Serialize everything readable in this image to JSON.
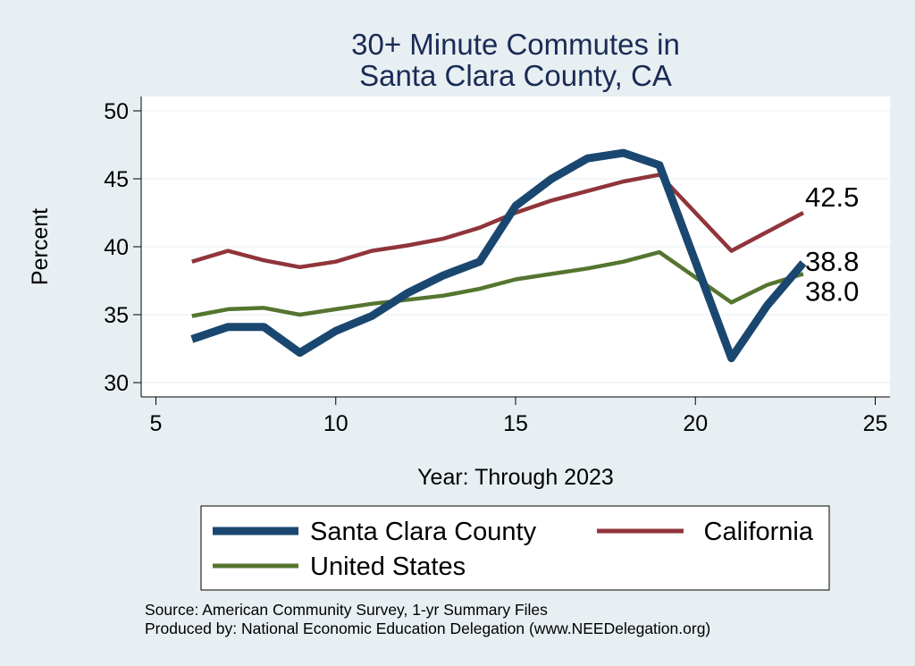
{
  "chart_data": {
    "type": "line",
    "title": [
      "30+ Minute Commutes in",
      "Santa Clara County, CA"
    ],
    "xlabel": "Year: Through 2023",
    "ylabel": "Percent",
    "xlim": [
      5,
      25
    ],
    "ylim": [
      30,
      50
    ],
    "xticks": [
      "5",
      "10",
      "15",
      "20",
      "25"
    ],
    "yticks": [
      "30",
      "35",
      "40",
      "45",
      "50"
    ],
    "x": [
      6,
      7,
      8,
      9,
      10,
      11,
      12,
      13,
      14,
      15,
      16,
      17,
      18,
      19,
      21,
      22,
      23
    ],
    "series": [
      {
        "name": "Santa Clara County",
        "color": "#1a476f",
        "values": [
          33.2,
          34.1,
          34.1,
          32.2,
          33.8,
          34.9,
          36.6,
          37.9,
          38.9,
          43.0,
          45.0,
          46.5,
          46.9,
          46.0,
          31.8,
          35.7,
          38.8
        ],
        "end_label": "38.8"
      },
      {
        "name": "California",
        "color": "#90353b",
        "values": [
          38.9,
          39.7,
          39.0,
          38.5,
          38.9,
          39.7,
          40.1,
          40.6,
          41.4,
          42.5,
          43.4,
          44.1,
          44.8,
          45.3,
          39.7,
          41.1,
          42.5
        ],
        "end_label": "42.5"
      },
      {
        "name": "United States",
        "color": "#55752f",
        "values": [
          34.9,
          35.4,
          35.5,
          35.0,
          35.4,
          35.8,
          36.1,
          36.4,
          36.9,
          37.6,
          38.0,
          38.4,
          38.9,
          39.6,
          35.9,
          37.2,
          38.0
        ],
        "end_label": "38.0"
      }
    ],
    "legend": [
      "Santa Clara County",
      "California",
      "United States"
    ],
    "notes": [
      "Source: American Community Survey, 1-yr Summary Files",
      "Produced by: National Economic Education Delegation (www.NEEDelegation.org)"
    ],
    "grid": true
  }
}
